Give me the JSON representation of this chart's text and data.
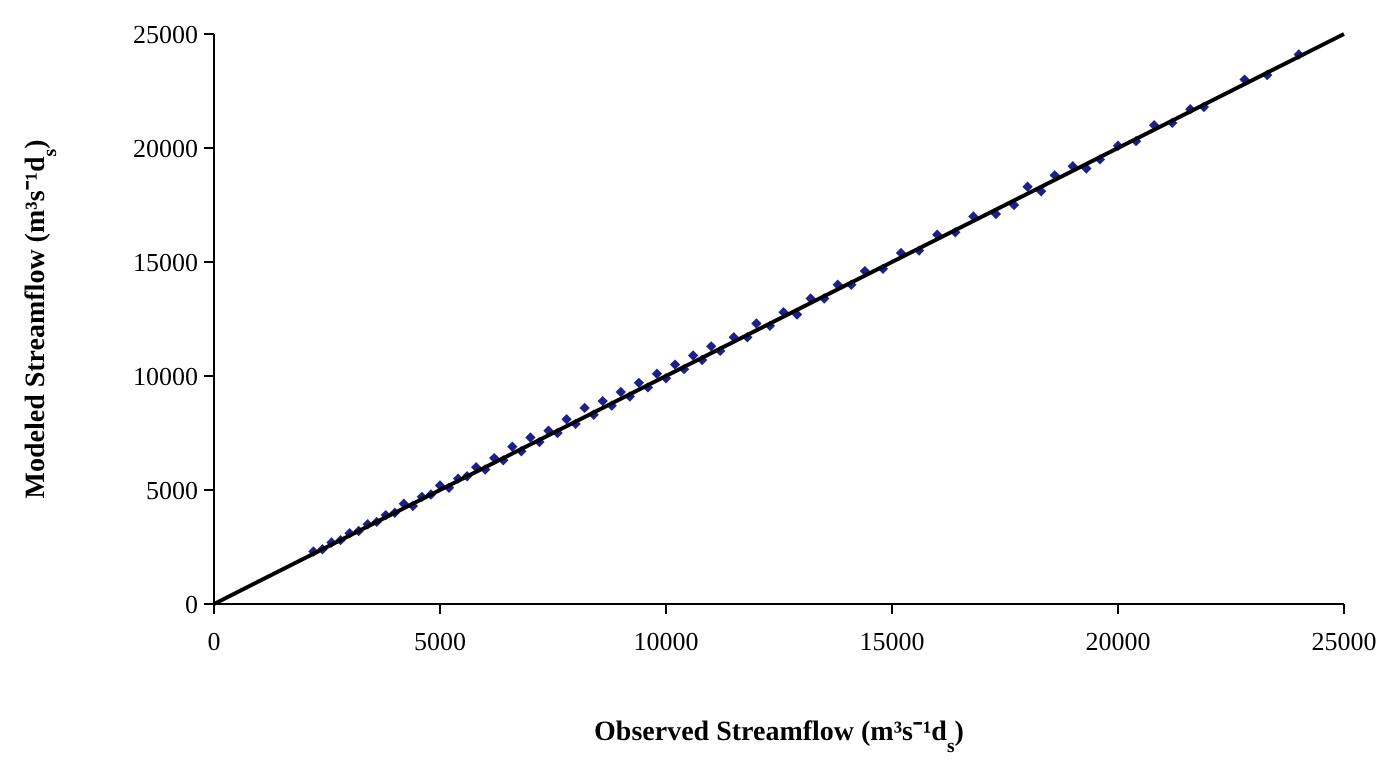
{
  "chart_data": {
    "type": "scatter",
    "xlabel": "Observed Streamflow (m³s⁻¹d$_{s}$)",
    "ylabel": "Modeled Streamflow (m³s⁻¹d$_{s}$)",
    "xlim": [
      0,
      25000
    ],
    "ylim": [
      0,
      25000
    ],
    "xticks": [
      0,
      5000,
      10000,
      15000,
      20000,
      25000
    ],
    "yticks": [
      0,
      5000,
      10000,
      15000,
      20000,
      25000
    ],
    "series": [
      {
        "color": "#1f1f8c",
        "marker": "diamond",
        "x": [
          2200,
          2400,
          2600,
          2800,
          3000,
          3200,
          3400,
          3600,
          3800,
          4000,
          4200,
          4400,
          4600,
          4800,
          5000,
          5200,
          5400,
          5600,
          5800,
          6000,
          6200,
          6400,
          6600,
          6800,
          7000,
          7200,
          7400,
          7600,
          7800,
          8000,
          8200,
          8400,
          8600,
          8800,
          9000,
          9200,
          9400,
          9600,
          9800,
          10000,
          10200,
          10400,
          10600,
          10800,
          11000,
          11200,
          11500,
          11800,
          12000,
          12300,
          12600,
          12900,
          13200,
          13500,
          13800,
          14100,
          14400,
          14800,
          15200,
          15600,
          16000,
          16400,
          16800,
          17300,
          17700,
          18000,
          18300,
          18600,
          19000,
          19300,
          19600,
          20000,
          20400,
          20800,
          21200,
          21600,
          21900,
          22800,
          23300,
          24000
        ],
        "values": [
          2300,
          2400,
          2700,
          2800,
          3100,
          3200,
          3500,
          3600,
          3900,
          4000,
          4400,
          4300,
          4700,
          4800,
          5200,
          5100,
          5500,
          5600,
          6000,
          5900,
          6400,
          6300,
          6900,
          6700,
          7300,
          7100,
          7600,
          7500,
          8100,
          7900,
          8600,
          8300,
          8900,
          8700,
          9300,
          9100,
          9700,
          9500,
          10100,
          9900,
          10500,
          10300,
          10900,
          10700,
          11300,
          11100,
          11700,
          11700,
          12300,
          12200,
          12800,
          12700,
          13400,
          13400,
          14000,
          14000,
          14600,
          14700,
          15400,
          15500,
          16200,
          16300,
          17000,
          17100,
          17500,
          18300,
          18100,
          18800,
          19200,
          19100,
          19500,
          20100,
          20300,
          21000,
          21100,
          21700,
          21800,
          23000,
          23200,
          24100
        ]
      },
      {
        "type": "line",
        "color": "#000000",
        "marker": "none",
        "x": [
          0,
          25000
        ],
        "values": [
          0,
          25000
        ]
      }
    ]
  }
}
